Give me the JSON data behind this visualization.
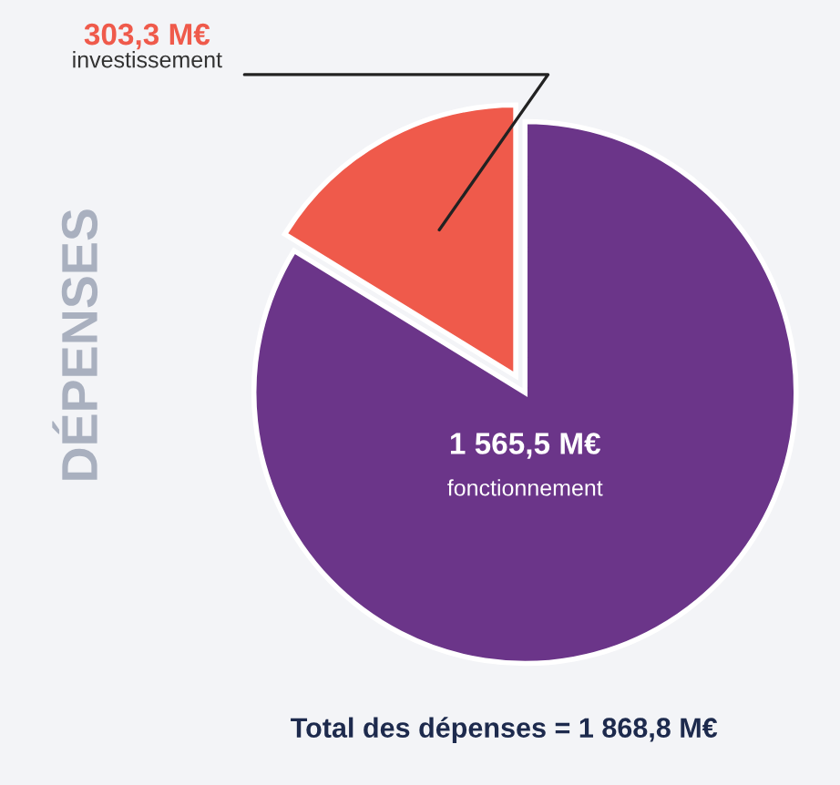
{
  "chart_data": {
    "type": "pie",
    "title": "DÉPENSES",
    "categories": [
      "investissement",
      "fonctionnement"
    ],
    "values": [
      303.3,
      1565.5
    ],
    "colors": [
      "#ef5a4b",
      "#6b3589"
    ],
    "value_labels": [
      "303,3 M€",
      "1 565,5 M€"
    ],
    "annotations": [
      "Total des dépenses = 1 868,8 M€"
    ],
    "legend": false
  }
}
